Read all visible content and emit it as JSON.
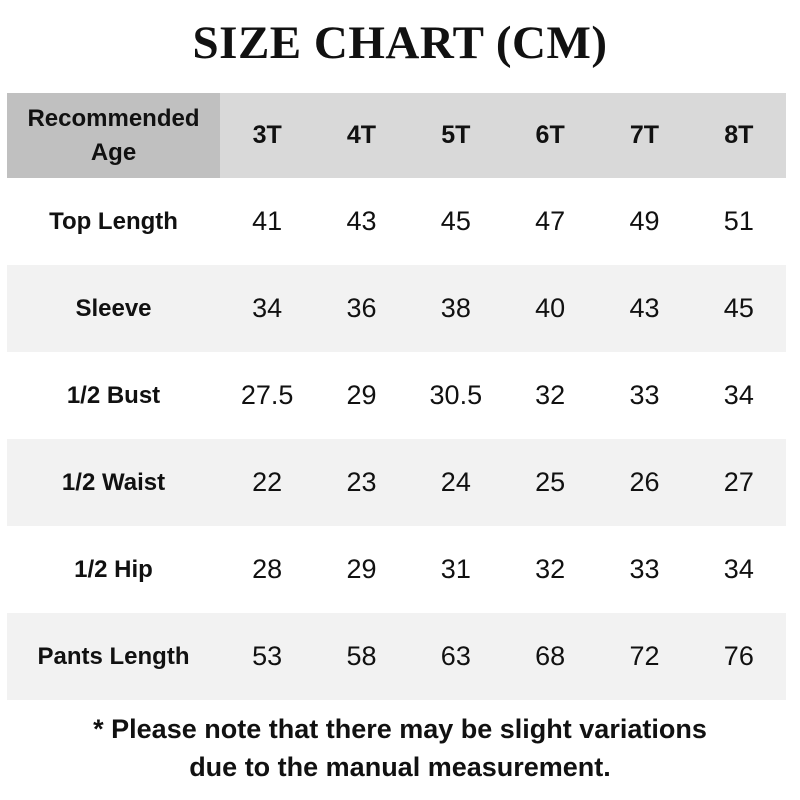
{
  "title": "SIZE CHART (CM)",
  "table": {
    "corner_label": "Recommended Age",
    "columns": [
      "3T",
      "4T",
      "5T",
      "6T",
      "7T",
      "8T"
    ],
    "rows": [
      {
        "label": "Top Length",
        "values": [
          "41",
          "43",
          "45",
          "47",
          "49",
          "51"
        ]
      },
      {
        "label": "Sleeve",
        "values": [
          "34",
          "36",
          "38",
          "40",
          "43",
          "45"
        ]
      },
      {
        "label": "1/2 Bust",
        "values": [
          "27.5",
          "29",
          "30.5",
          "32",
          "33",
          "34"
        ]
      },
      {
        "label": "1/2 Waist",
        "values": [
          "22",
          "23",
          "24",
          "25",
          "26",
          "27"
        ]
      },
      {
        "label": "1/2 Hip",
        "values": [
          "28",
          "29",
          "31",
          "32",
          "33",
          "34"
        ]
      },
      {
        "label": "Pants Length",
        "values": [
          "53",
          "58",
          "63",
          "68",
          "72",
          "76"
        ]
      }
    ]
  },
  "note": {
    "line1": "* Please note that there may be slight variations",
    "line2": "due to the manual measurement."
  },
  "colors": {
    "corner_bg": "#c0c0c0",
    "header_bg": "#d9d9d9",
    "alt_row_bg": "#f2f2f2"
  }
}
